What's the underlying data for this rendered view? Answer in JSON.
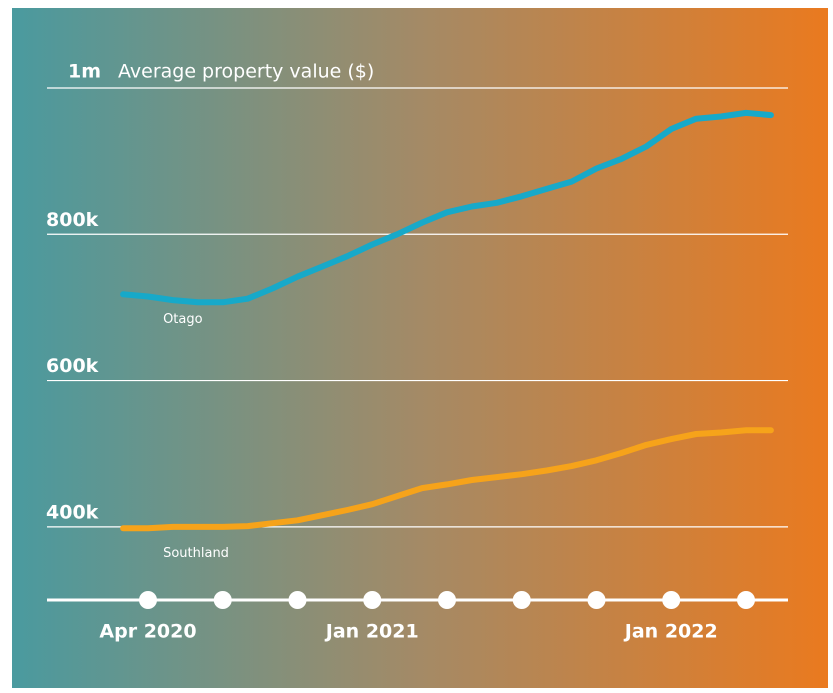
{
  "chart_data": {
    "type": "line",
    "title": "Average property value ($)",
    "x": [
      "2020-03",
      "2020-04",
      "2020-05",
      "2020-06",
      "2020-07",
      "2020-08",
      "2020-09",
      "2020-10",
      "2020-11",
      "2020-12",
      "2021-01",
      "2021-02",
      "2021-03",
      "2021-04",
      "2021-05",
      "2021-06",
      "2021-07",
      "2021-08",
      "2021-09",
      "2021-10",
      "2021-11",
      "2021-12",
      "2022-01",
      "2022-02",
      "2022-03",
      "2022-04",
      "2022-05"
    ],
    "series": [
      {
        "name": "Otago",
        "color": "#17a9c9",
        "values": [
          718000,
          715000,
          710000,
          707000,
          707000,
          712000,
          726000,
          742000,
          756000,
          770000,
          786000,
          800000,
          816000,
          830000,
          838000,
          843000,
          852000,
          862000,
          872000,
          890000,
          903000,
          920000,
          944000,
          958000,
          961000,
          966000,
          963000
        ]
      },
      {
        "name": "Southland",
        "color": "#f6a31a",
        "values": [
          398000,
          398000,
          400000,
          400000,
          400000,
          401000,
          405000,
          409000,
          416000,
          423000,
          431000,
          442000,
          453000,
          458000,
          464000,
          468000,
          472000,
          477000,
          483000,
          491000,
          501000,
          512000,
          520000,
          527000,
          529000,
          532000,
          532000
        ]
      }
    ],
    "ylim": [
      300000,
      1000000
    ],
    "yticks": [
      {
        "value": 400000,
        "label": "400k"
      },
      {
        "value": 600000,
        "label": "600k"
      },
      {
        "value": 800000,
        "label": "800k"
      },
      {
        "value": 1000000,
        "label": "1m"
      }
    ],
    "xticks": [
      {
        "value": "2020-04",
        "label": "Apr 2020"
      },
      {
        "value": "2020-07",
        "label": null
      },
      {
        "value": "2020-10",
        "label": null
      },
      {
        "value": "2021-01",
        "label": "Jan 2021"
      },
      {
        "value": "2021-04",
        "label": null
      },
      {
        "value": "2021-07",
        "label": null
      },
      {
        "value": "2021-10",
        "label": null
      },
      {
        "value": "2022-01",
        "label": "Jan 2022"
      },
      {
        "value": "2022-04",
        "label": null
      }
    ],
    "grid": true
  }
}
